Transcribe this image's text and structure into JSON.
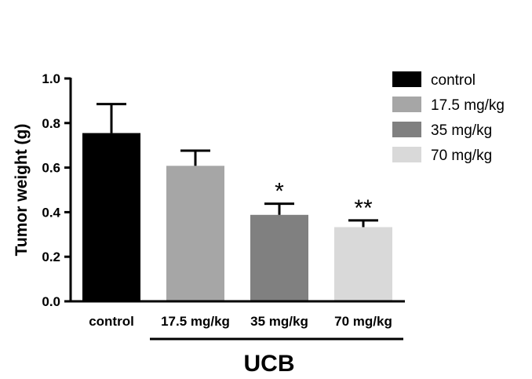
{
  "chart_data": {
    "type": "bar",
    "categories": [
      "control",
      "17.5 mg/kg",
      "35 mg/kg",
      "70 mg/kg"
    ],
    "values": [
      0.755,
      0.608,
      0.388,
      0.333
    ],
    "errors": [
      0.13,
      0.068,
      0.05,
      0.03
    ],
    "significance": [
      "",
      "",
      "*",
      "**"
    ],
    "colors": [
      "#000000",
      "#a6a6a6",
      "#808080",
      "#d9d9d9"
    ],
    "xlabel": "",
    "ylabel": "Tumor weight (g)",
    "group_label": "UCB",
    "group_span": [
      "17.5 mg/kg",
      "70 mg/kg"
    ],
    "ylim": [
      0,
      1.0
    ],
    "yticks": [
      "0.0",
      "0.2",
      "0.4",
      "0.6",
      "0.8",
      "1.0"
    ],
    "grid": false,
    "legend": {
      "position": "top-right",
      "entries": [
        "control",
        "17.5 mg/kg",
        "35 mg/kg",
        "70 mg/kg"
      ]
    }
  }
}
